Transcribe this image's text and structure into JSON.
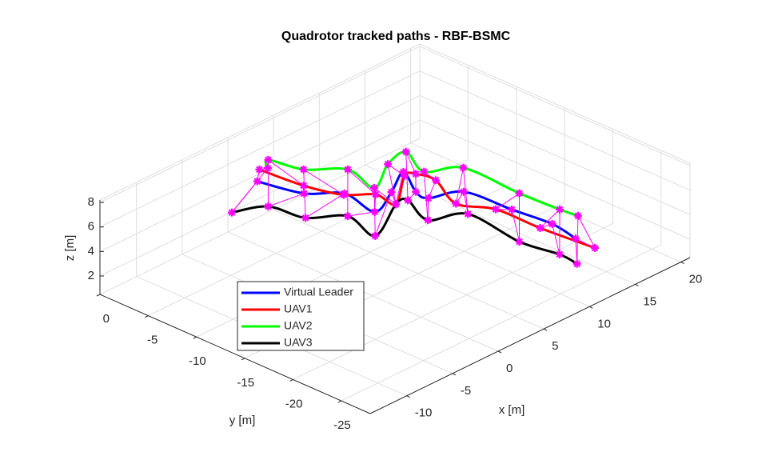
{
  "chart_data": {
    "type": "line3d",
    "title": "Quadrotor tracked paths - RBF-BSMC",
    "x_label": "x [m]",
    "y_label": "y [m]",
    "z_label": "z [m]",
    "xlim": [
      -14,
      21
    ],
    "ylim": [
      -28,
      0
    ],
    "zlim": [
      0.5,
      8.2
    ],
    "xticks": [
      -10,
      -5,
      0,
      5,
      10,
      15,
      20
    ],
    "yticks": [
      -25,
      -20,
      -15,
      -10,
      -5,
      0
    ],
    "zticks": [
      2,
      4,
      6,
      8
    ],
    "grid": true,
    "formation_color": "#ff00ff",
    "series": [
      {
        "name": "Virtual Leader",
        "color": "#0000ff",
        "x": [
          1.0,
          2.0,
          4.1,
          3.5,
          6.7,
          9.7,
          8.0,
          7.9,
          10.5,
          10.9,
          11.3,
          10.8
        ],
        "y": [
          -2.1,
          -6.0,
          -8.2,
          -11.9,
          -10.6,
          -9.0,
          -11.9,
          -13.3,
          -14.5,
          -19.1,
          -22.9,
          -25.8
        ],
        "z": [
          5,
          5,
          5,
          5,
          5,
          5,
          5,
          5,
          5,
          5,
          5,
          5
        ]
      },
      {
        "name": "UAV1",
        "color": "#ff0000",
        "x": [
          2.5,
          2.9,
          3.9,
          5.6,
          5.5,
          9.3,
          10.1,
          10.4,
          8.7,
          10.1,
          10.2,
          10.7
        ],
        "y": [
          -0.9,
          -5.1,
          -8.3,
          -10.0,
          -12.2,
          -9.5,
          -9.9,
          -11.7,
          -15.4,
          -18.2,
          -22.7,
          -27.9
        ],
        "z": [
          5,
          5,
          5,
          5,
          5,
          5,
          5,
          5,
          5,
          5,
          5,
          5
        ]
      },
      {
        "name": "UAV2",
        "color": "#00ff00",
        "x": [
          3.1,
          4.1,
          4.8,
          7.1,
          6.3,
          9.8,
          12.2,
          10.8,
          13.3,
          13.2,
          13.4,
          13.6
        ],
        "y": [
          -1.2,
          -0.3,
          -3.3,
          -5.7,
          -9.2,
          -7.3,
          -6.9,
          -10.1,
          -11.8,
          -17.7,
          -21.7,
          -23.4
        ],
        "z": [
          5,
          5,
          5,
          5,
          5,
          5,
          5,
          5,
          5,
          5,
          5,
          5
        ]
      },
      {
        "name": "UAV3",
        "color": "#000000",
        "x": [
          -4.0,
          -1.4,
          -0.8,
          1.6,
          0.7,
          5.5,
          6.6,
          5.3,
          8.1,
          7.5,
          8.1,
          7.9
        ],
        "y": [
          -4.2,
          -5.5,
          -8.8,
          -10.9,
          -14.6,
          -12.2,
          -12.4,
          -15.7,
          -17.2,
          -23.1,
          -26.7,
          -28.7
        ],
        "z": [
          5,
          5,
          5,
          5,
          5,
          5,
          5,
          5,
          5,
          5,
          5,
          5
        ]
      }
    ]
  }
}
